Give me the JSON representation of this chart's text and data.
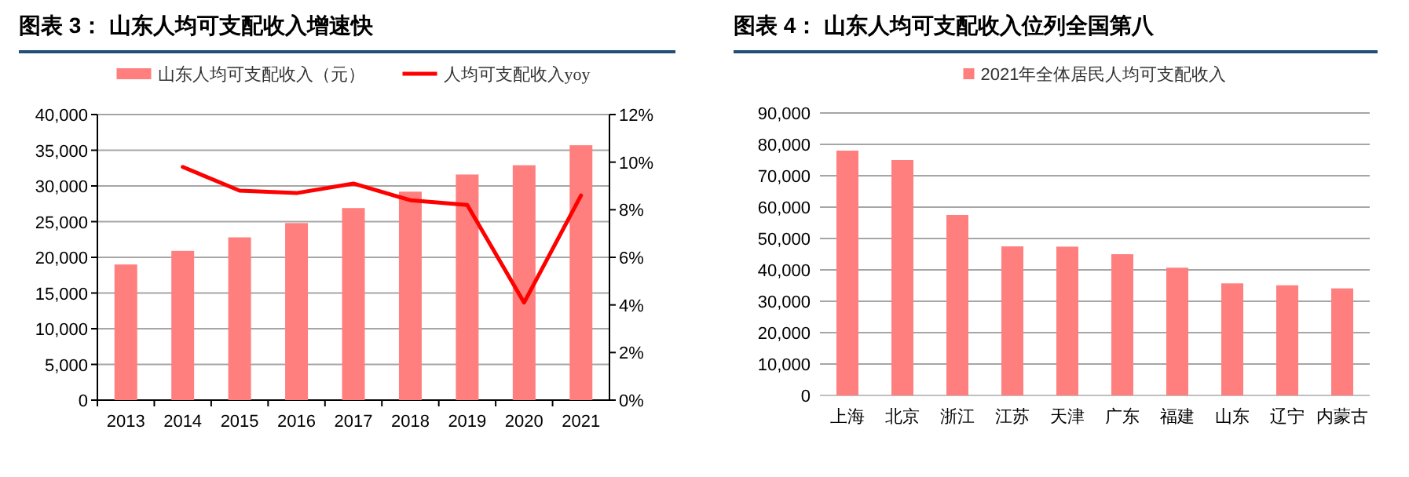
{
  "chart_data": [
    {
      "type": "bar",
      "title": "图表 3： 山东人均可支配收入增速快",
      "categories": [
        "2013",
        "2014",
        "2015",
        "2016",
        "2017",
        "2018",
        "2019",
        "2020",
        "2021"
      ],
      "series": [
        {
          "name": "山东人均可支配收入（元）",
          "color": "#ff7f7f",
          "values": [
            19000,
            20900,
            22800,
            24800,
            26900,
            29200,
            31600,
            32900,
            35700
          ]
        },
        {
          "name": "人均可支配收入yoy",
          "type": "line",
          "axis": "y2",
          "color": "#ff0000",
          "values": [
            null,
            9.8,
            8.8,
            8.7,
            9.1,
            8.4,
            8.2,
            4.1,
            8.6
          ]
        }
      ],
      "ylim": [
        0,
        40000
      ],
      "yticks": [
        0,
        {
          "value": 5000,
          "label": "5,000"
        },
        {
          "value": 10000,
          "label": "10,000"
        },
        {
          "value": 15000,
          "label": "15,000"
        },
        {
          "value": 20000,
          "label": "20,000"
        },
        {
          "value": 25000,
          "label": "25,000"
        },
        {
          "value": 30000,
          "label": "30,000"
        },
        {
          "value": 35000,
          "label": "35,000"
        },
        {
          "value": 40000,
          "label": "40,000"
        }
      ],
      "y2lim": [
        0,
        12
      ],
      "y2ticks": [
        {
          "value": 0,
          "label": "0%"
        },
        {
          "value": 2,
          "label": "2%"
        },
        {
          "value": 4,
          "label": "4%"
        },
        {
          "value": 6,
          "label": "6%"
        },
        {
          "value": 8,
          "label": "8%"
        },
        {
          "value": 10,
          "label": "10%"
        },
        {
          "value": 12,
          "label": "12%"
        }
      ],
      "grid": "y",
      "legend": "top",
      "marker": "none",
      "line_style": "solid"
    },
    {
      "type": "bar",
      "title": "图表 4： 山东人均可支配收入位列全国第八",
      "categories": [
        "上海",
        "北京",
        "浙江",
        "江苏",
        "天津",
        "广东",
        "福建",
        "山东",
        "辽宁",
        "内蒙古"
      ],
      "series": [
        {
          "name": "2021年全体居民人均可支配收入",
          "color": "#ff7f7f",
          "values": [
            78000,
            75000,
            57500,
            47500,
            47400,
            45000,
            40700,
            35700,
            35100,
            34100
          ]
        }
      ],
      "ylim": [
        0,
        90000
      ],
      "yticks": [
        0,
        {
          "value": 10000,
          "label": "10,000"
        },
        {
          "value": 20000,
          "label": "20,000"
        },
        {
          "value": 30000,
          "label": "30,000"
        },
        {
          "value": 40000,
          "label": "40,000"
        },
        {
          "value": 50000,
          "label": "50,000"
        },
        {
          "value": 60000,
          "label": "60,000"
        },
        {
          "value": 70000,
          "label": "70,000"
        },
        {
          "value": 80000,
          "label": "80,000"
        },
        {
          "value": 90000,
          "label": "90,000"
        }
      ],
      "grid": "y",
      "legend": "top"
    }
  ]
}
